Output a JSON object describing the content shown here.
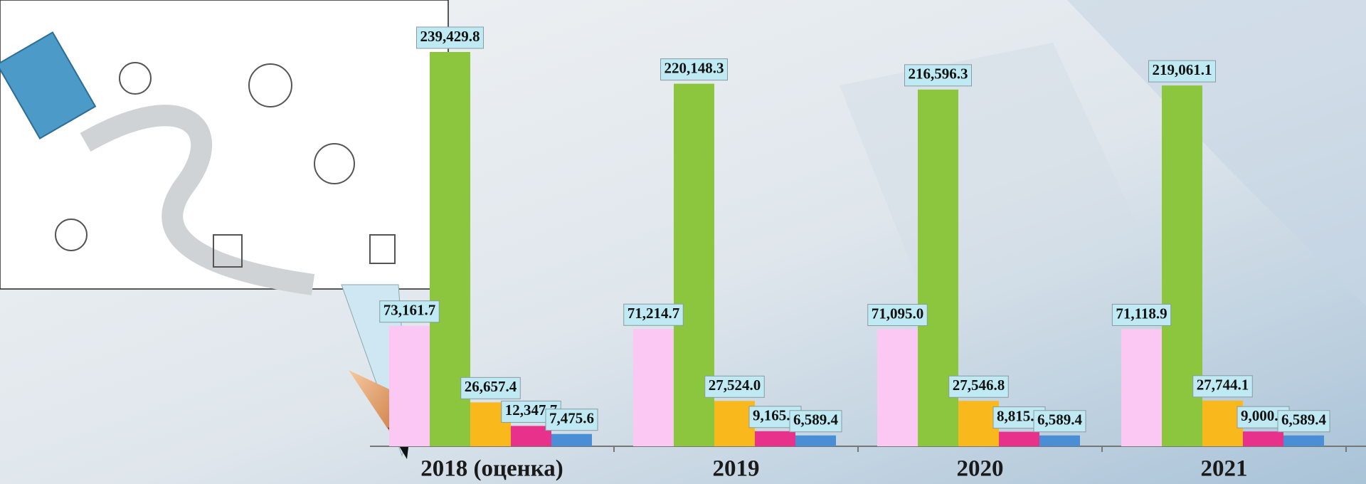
{
  "chart_data": {
    "type": "bar",
    "categories": [
      "2018 (оценка)",
      "2019",
      "2020",
      "2021"
    ],
    "series": [
      {
        "color": "#fbc8f3",
        "values": [
          73161.7,
          71214.7,
          71095.0,
          71118.9
        ],
        "value_labels": [
          "73,161.7",
          "71,214.7",
          "71,095.0",
          "71,118.9"
        ]
      },
      {
        "color": "#8cc63f",
        "values": [
          239429.8,
          220148.3,
          216596.3,
          219061.1
        ],
        "value_labels": [
          "239,429.8",
          "220,148.3",
          "216,596.3",
          "219,061.1"
        ]
      },
      {
        "color": "#f9b81b",
        "values": [
          26657.4,
          27524.0,
          27546.8,
          27744.1
        ],
        "value_labels": [
          "26,657.4",
          "27,524.0",
          "27,546.8",
          "27,744.1"
        ]
      },
      {
        "color": "#e8318a",
        "values": [
          12347.7,
          9165.5,
          8815.0,
          9000.4
        ],
        "value_labels": [
          "12,347.7",
          "9,165.5",
          "8,815.0",
          "9,000.4"
        ]
      },
      {
        "color": "#4a8fd6",
        "values": [
          7475.6,
          6589.4,
          6589.4,
          6589.4
        ],
        "value_labels": [
          "7,475.6",
          "6,589.4",
          "6,589.4",
          "6,589.4"
        ]
      }
    ]
  }
}
